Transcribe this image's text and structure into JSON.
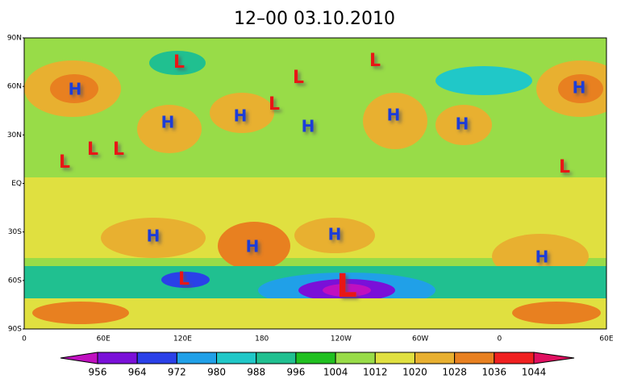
{
  "title": "12–00    03.10.2010",
  "lat_labels": [
    "90N",
    "60N",
    "30N",
    "EQ",
    "30S",
    "60S",
    "90S"
  ],
  "lon_labels": [
    "0",
    "60E",
    "120E",
    "180",
    "120W",
    "60W",
    "0",
    "60E"
  ],
  "pressure_systems": [
    "L",
    "L",
    "L",
    "L",
    "L",
    "L",
    "L",
    "L",
    "L",
    "L",
    "H",
    "H",
    "H",
    "H",
    "H",
    "H",
    "H",
    "H",
    "H",
    "H",
    "H"
  ],
  "colorbar": {
    "levels": [
      956,
      964,
      972,
      980,
      988,
      996,
      1004,
      1012,
      1020,
      1028,
      1036,
      1044
    ],
    "colors": [
      "#c010c0",
      "#7a10d8",
      "#2a40e8",
      "#20a0e8",
      "#20c8c8",
      "#20c090",
      "#20c020",
      "#98dc48",
      "#e0e040",
      "#e8b030",
      "#e88020",
      "#f02020",
      "#e01060"
    ]
  }
}
